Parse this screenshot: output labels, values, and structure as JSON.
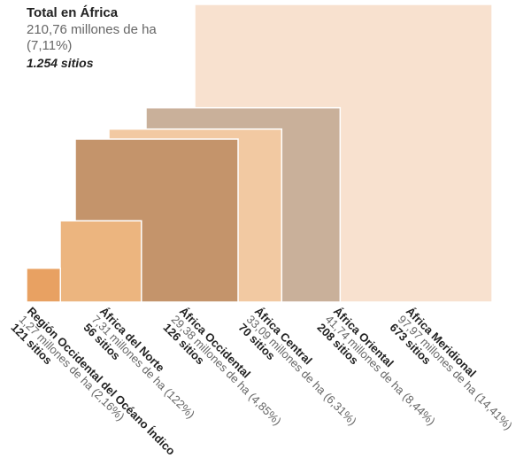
{
  "chart_data": {
    "type": "square",
    "total": {
      "title": "Total en África",
      "area_label": "210,76 millones de ha",
      "share_label": "(7,11%)",
      "sites_label": "1.254 sitios"
    },
    "categories": [
      "Región Occidental del Océano Índico",
      "África del Norte",
      "África Occidental",
      "África Central",
      "África Oriental",
      "África Meridional"
    ],
    "values": [
      1.27,
      7.31,
      29.38,
      33.09,
      41.74,
      97.97
    ],
    "value_labels": [
      "1,27 millones de ha (2,16%)",
      "7,31 millones de ha (122%)",
      "29,38 millones de ha (4,85%)",
      "33,09 millones de ha (6,31%)",
      "41,74 millones de ha (8,44%)",
      "97,97 millones de ha (14,41%)"
    ],
    "sites_labels": [
      "121 sitios",
      "56 sitios",
      "126 sitios",
      "70 sitios",
      "208 sitios",
      "673 sitios"
    ],
    "colors": [
      "#e8a162",
      "#ecb57f",
      "#c4946b",
      "#f2c9a2",
      "#c9b09a",
      "#f8e1cf"
    ]
  }
}
